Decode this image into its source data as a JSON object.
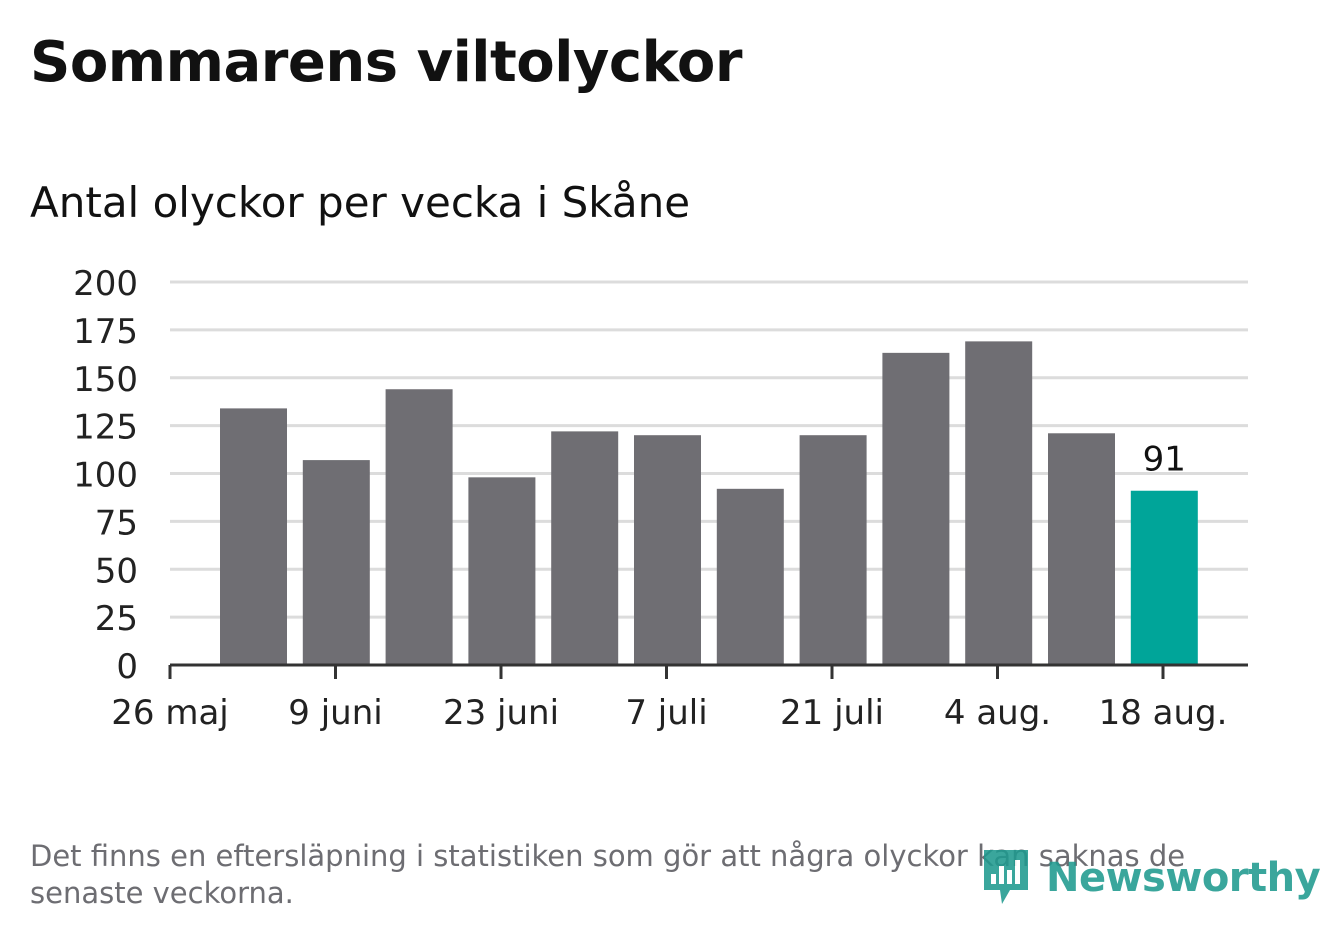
{
  "title": "Sommarens viltolyckor",
  "subtitle": "Antal olyckor per vecka i Skåne",
  "footnote": "Det finns en eftersläpning i statistiken som gör att några olyckor kan saknas de senaste veckorna.",
  "logo": {
    "text": "Newsworthy",
    "icon": "bar-chart-speech-bubble-icon"
  },
  "colors": {
    "bar": "#6f6e73",
    "highlight": "#00a599",
    "grid": "#dcdcdc",
    "axis": "#333333",
    "text": "#111111",
    "muted": "#6d6d72",
    "logo": "#1f9a8f"
  },
  "chart_data": {
    "type": "bar",
    "title": "Antal olyckor per vecka i Skåne",
    "ylim": [
      0,
      200
    ],
    "yticks": [
      0,
      25,
      50,
      75,
      100,
      125,
      150,
      175,
      200
    ],
    "x_tick_labels": [
      "26 maj",
      "9 juni",
      "23 juni",
      "7 juli",
      "21 juli",
      "4 aug.",
      "18 aug."
    ],
    "weeks_start": [
      "2019-05-27",
      "2019-06-03",
      "2019-06-10",
      "2019-06-17",
      "2019-06-24",
      "2019-07-01",
      "2019-07-08",
      "2019-07-15",
      "2019-07-22",
      "2019-07-29",
      "2019-08-05",
      "2019-08-12"
    ],
    "values": [
      134,
      107,
      144,
      98,
      122,
      120,
      92,
      120,
      163,
      169,
      121,
      91
    ],
    "highlight_index": 11,
    "data_labels": [
      {
        "index": 11,
        "text": "91"
      }
    ],
    "grid": true,
    "legend": "none"
  }
}
